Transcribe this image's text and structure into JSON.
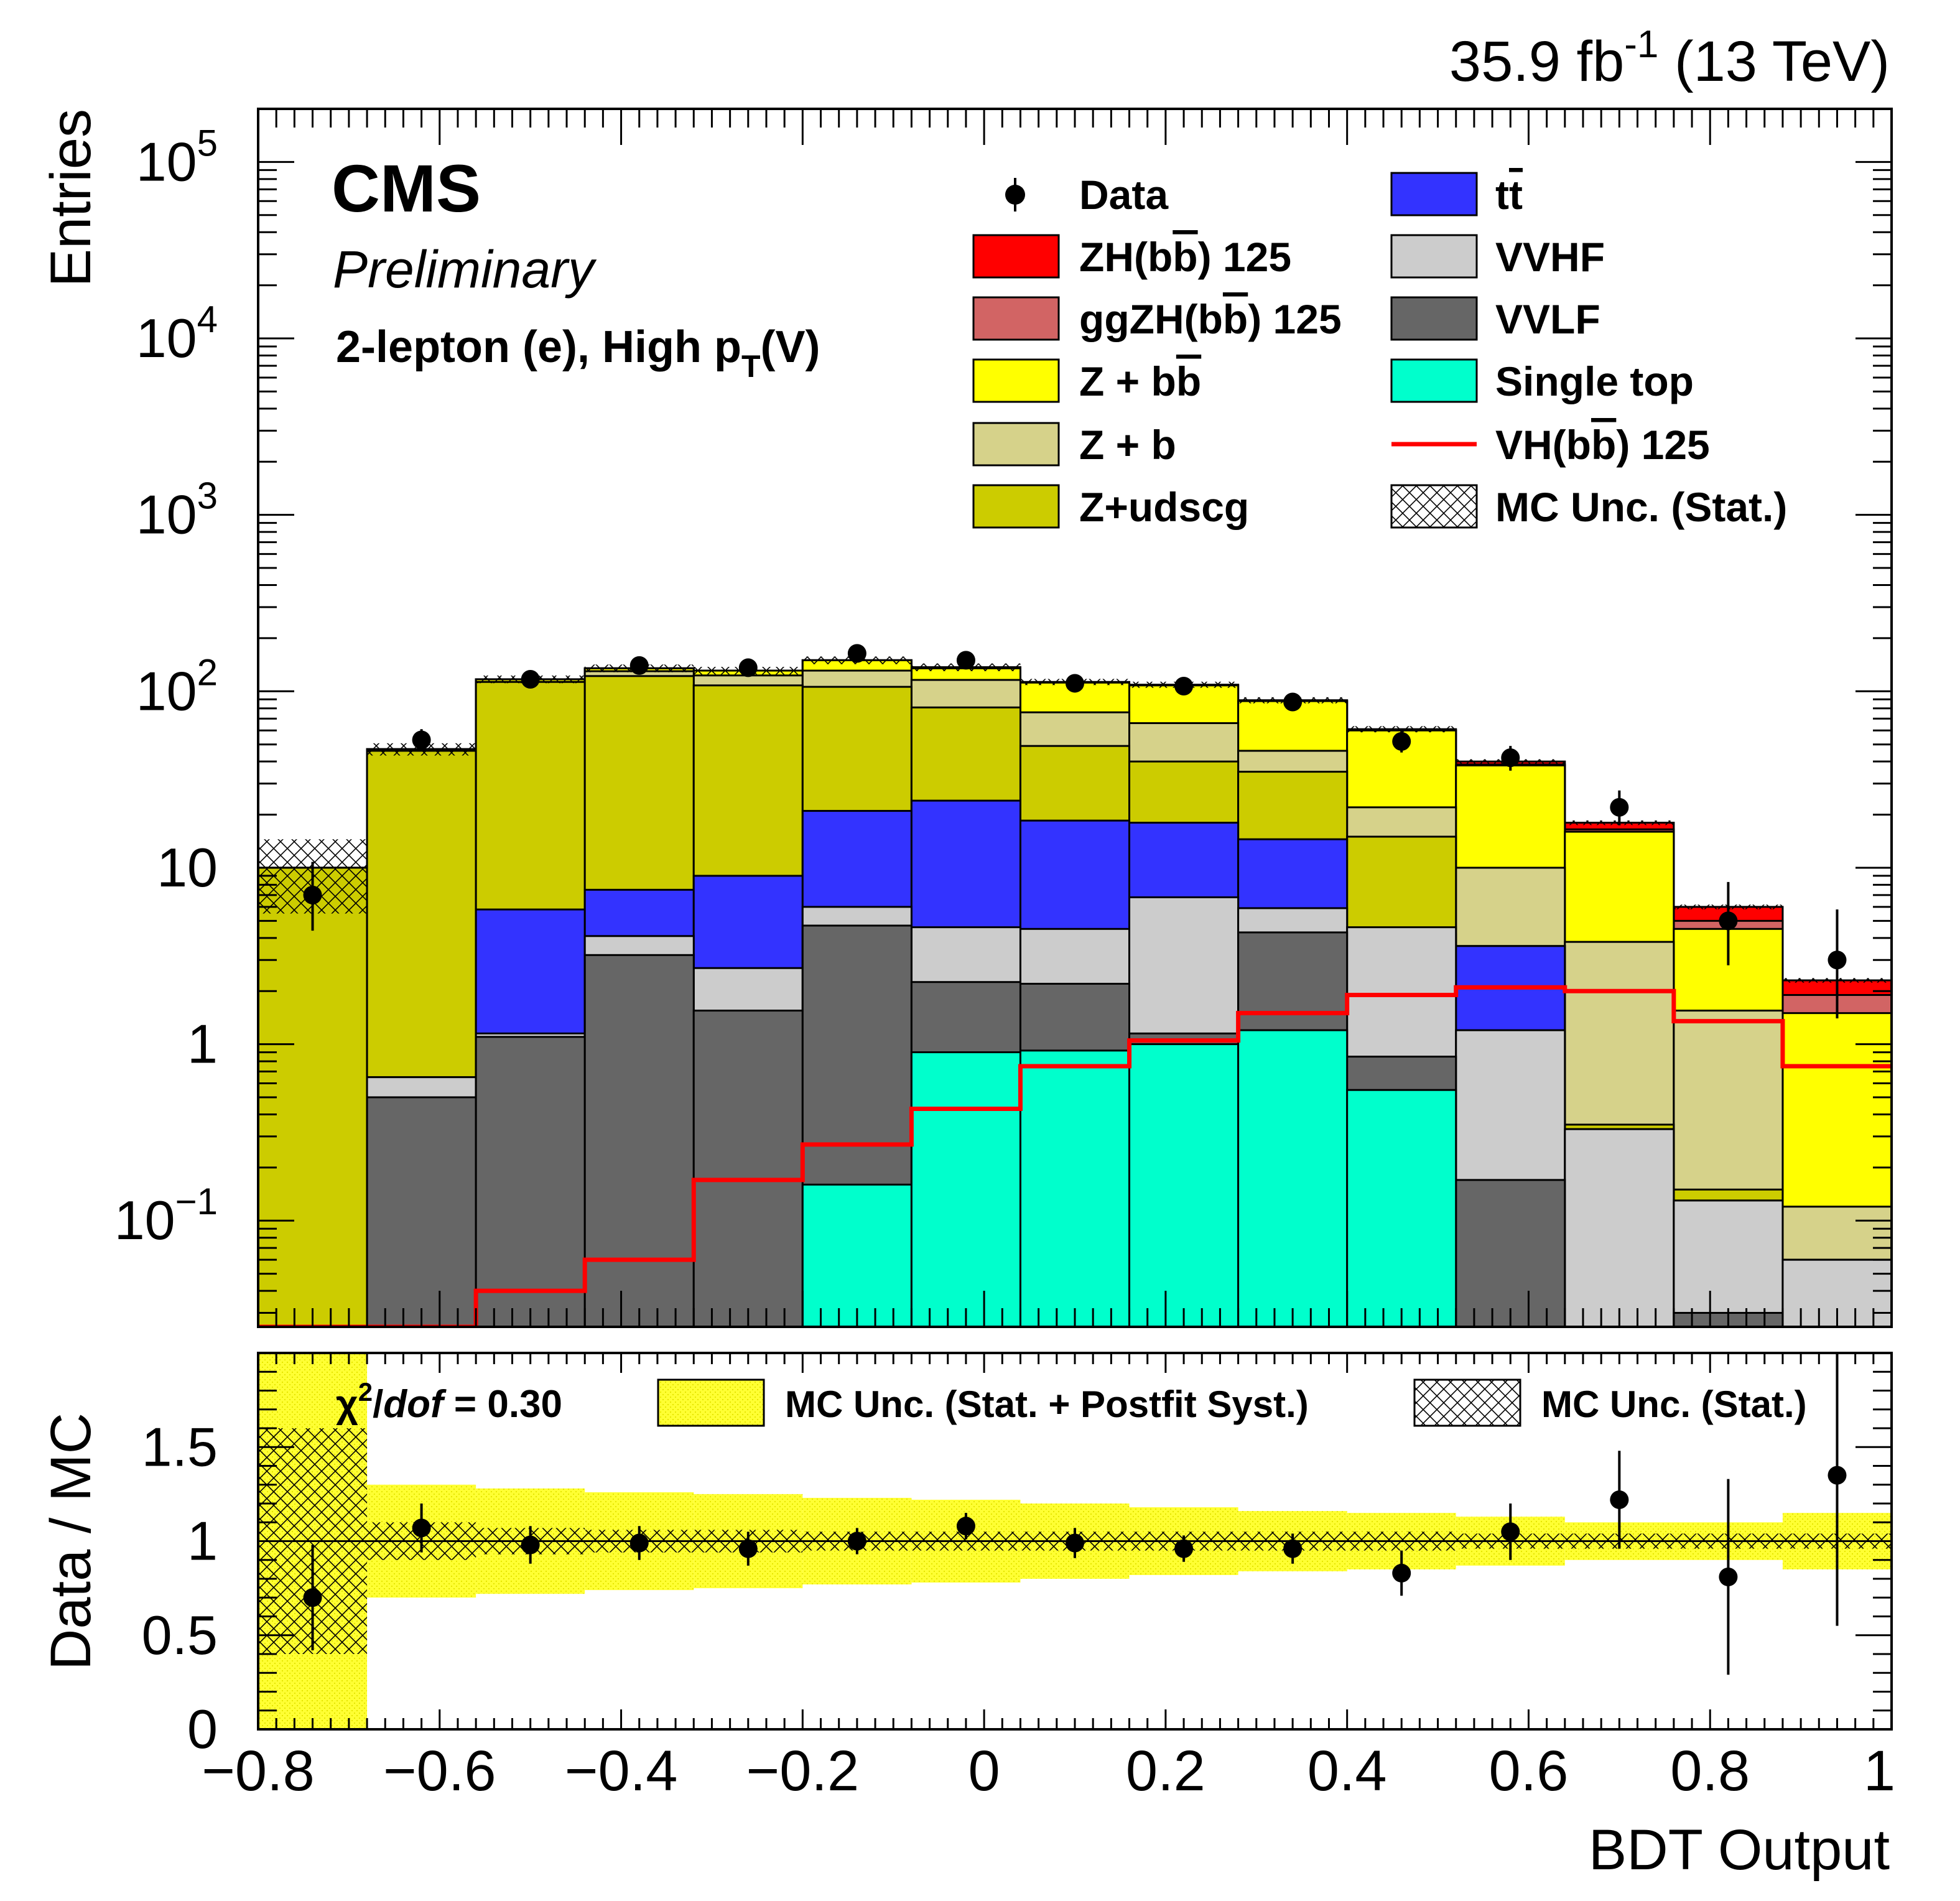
{
  "header": {
    "lumi": "35.9 fb",
    "lumi_sup": "-1",
    "energy": " (13 TeV)"
  },
  "labels": {
    "cms": "CMS",
    "preliminary": "Preliminary",
    "channel_pre": "2-lepton (e), High p",
    "channel_sub": "T",
    "channel_post": "(V)"
  },
  "chart_data": [
    {
      "type": "area",
      "stacked_histogram": true,
      "ylabel": "Entries",
      "yscale": "log",
      "ylim": [
        0.025,
        200000
      ],
      "xlim": [
        -0.8,
        1.0
      ],
      "bin_edges": [
        -0.8,
        -0.68,
        -0.56,
        -0.44,
        -0.32,
        -0.2,
        -0.08,
        0.04,
        0.16,
        0.28,
        0.4,
        0.52,
        0.64,
        0.76,
        0.88,
        1.0
      ],
      "y_ticks": [
        {
          "v": 100000,
          "b": "10",
          "e": "5"
        },
        {
          "v": 10000,
          "b": "10",
          "e": "4"
        },
        {
          "v": 1000,
          "b": "10",
          "e": "3"
        },
        {
          "v": 100,
          "b": "10",
          "e": "2"
        },
        {
          "v": 10,
          "b": "10",
          "e": ""
        },
        {
          "v": 1,
          "b": "1",
          "e": ""
        },
        {
          "v": 0.1,
          "b": "10",
          "e": "−1"
        }
      ],
      "stack_order_bottom_to_top": [
        "single_top",
        "vvlf",
        "vvhf",
        "ttbar",
        "z_udscg",
        "z_b",
        "z_bb",
        "ggzh",
        "zh"
      ],
      "cumulative_stack_tops": {
        "single_top": [
          0,
          0,
          0,
          0,
          0,
          0.16,
          0.9,
          0.92,
          1.0,
          1.2,
          0.55,
          0,
          0,
          0,
          0
        ],
        "vvlf": [
          0,
          0.5,
          1.1,
          3.2,
          1.55,
          4.7,
          2.25,
          2.2,
          1.15,
          4.3,
          0.85,
          0.17,
          0,
          0.03,
          0
        ],
        "vvhf": [
          0,
          0.65,
          1.15,
          4.1,
          2.7,
          6.0,
          4.6,
          4.5,
          6.8,
          5.9,
          4.6,
          1.2,
          0.33,
          0.13,
          0.06
        ],
        "ttbar": [
          0,
          0.65,
          5.8,
          7.5,
          9.0,
          21.0,
          24.0,
          18.5,
          18.0,
          14.5,
          4.2,
          3.6,
          0.33,
          0.13,
          0.06
        ],
        "z_udscg": [
          10.0,
          46.0,
          113.0,
          122.0,
          108.0,
          106.0,
          81.0,
          49.0,
          40.0,
          35.0,
          15.0,
          3.6,
          0.35,
          0.15,
          0.06
        ],
        "z_b": [
          10.0,
          46.0,
          113.0,
          130.0,
          123.0,
          131.0,
          116.0,
          76.0,
          66.0,
          46.0,
          22.0,
          10.0,
          3.8,
          1.55,
          0.12
        ],
        "z_bb": [
          10.0,
          47.0,
          117.0,
          135.0,
          131.0,
          150.0,
          135.0,
          112.0,
          108.0,
          88.0,
          60.0,
          38.0,
          16.0,
          4.5,
          1.5
        ],
        "ggzh": [
          10.0,
          47.0,
          117.0,
          135.0,
          131.0,
          150.0,
          136.0,
          112.0,
          108.0,
          88.0,
          60.0,
          38.5,
          16.5,
          5.0,
          1.9
        ],
        "zh": [
          10.0,
          47.0,
          117.0,
          135.0,
          131.0,
          150.0,
          137.0,
          113.0,
          109.0,
          89.0,
          61.0,
          40.0,
          18.0,
          6.0,
          2.3
        ]
      },
      "vh_line": [
        0.025,
        0.025,
        0.04,
        0.06,
        0.17,
        0.27,
        0.43,
        0.75,
        1.05,
        1.5,
        1.9,
        2.1,
        2.0,
        1.35,
        0.75
      ],
      "data_points": {
        "x": [
          -0.74,
          -0.62,
          -0.5,
          -0.38,
          -0.26,
          -0.14,
          -0.02,
          0.1,
          0.22,
          0.34,
          0.46,
          0.58,
          0.7,
          0.82,
          0.94
        ],
        "y": [
          7.0,
          53.0,
          117.0,
          140.0,
          136.0,
          164.0,
          150.0,
          111.0,
          107.0,
          87.0,
          52.0,
          42.0,
          22.0,
          5.0,
          3.0
        ],
        "err_lo": [
          2.6,
          7.0,
          11.0,
          12.0,
          12.0,
          13.0,
          12.0,
          11.0,
          10.0,
          9.5,
          7.0,
          6.5,
          4.6,
          2.2,
          1.6
        ],
        "err_hi": [
          3.8,
          8.0,
          11.5,
          12.5,
          12.5,
          13.5,
          12.5,
          11.0,
          10.5,
          9.5,
          7.5,
          7.0,
          5.4,
          3.3,
          2.8
        ]
      },
      "mc_stat_unc_rel": [
        0.45,
        0.08,
        0.05,
        0.05,
        0.05,
        0.05,
        0.05,
        0.04,
        0.04,
        0.04,
        0.04,
        0.03,
        0.03,
        0.03,
        0.03
      ],
      "legend_placement": "top-right",
      "legend": {
        "data": "Data",
        "zh": "ZH(b",
        "ggzh": "ggZH(b",
        "z_bb": "Z + b",
        "z_b": "Z + b",
        "z_udscg": "Z+udscg",
        "ttbar": "t",
        "vvhf": "VVHF",
        "vvlf": "VVLF",
        "single_top": "Single top",
        "vh": "VH(b",
        "mc_unc": "MC Unc. (Stat.)",
        "bbar_suffix": ") 125",
        "b_letter": "b",
        "t_letter": "t"
      },
      "colors": {
        "zh": "#ff0000",
        "ggzh": "#d26464",
        "z_bb": "#ffff00",
        "z_b": "#d6d28a",
        "z_udscg": "#cccc00",
        "ttbar": "#3333ff",
        "vvhf": "#cccccc",
        "vvlf": "#666666",
        "single_top": "#00ffcc",
        "vh_line": "#ff0000"
      }
    },
    {
      "type": "scatter",
      "ylabel": "Data / MC",
      "xlabel": "BDT Output",
      "ylim": [
        0,
        2
      ],
      "xlim": [
        -0.8,
        1.0
      ],
      "x_ticks": [
        {
          "v": -0.8,
          "t": "−0.8"
        },
        {
          "v": -0.6,
          "t": "−0.6"
        },
        {
          "v": -0.4,
          "t": "−0.4"
        },
        {
          "v": -0.2,
          "t": "−0.2"
        },
        {
          "v": 0,
          "t": "0"
        },
        {
          "v": 0.2,
          "t": "0.2"
        },
        {
          "v": 0.4,
          "t": "0.4"
        },
        {
          "v": 0.6,
          "t": "0.6"
        },
        {
          "v": 0.8,
          "t": "0.8"
        },
        {
          "v": 1.0,
          "t": "1"
        }
      ],
      "y_ticks": [
        {
          "v": 0,
          "t": "0"
        },
        {
          "v": 0.5,
          "t": "0.5"
        },
        {
          "v": 1,
          "t": "1"
        },
        {
          "v": 1.5,
          "t": "1.5"
        }
      ],
      "ratio": {
        "x": [
          -0.74,
          -0.62,
          -0.5,
          -0.38,
          -0.26,
          -0.14,
          -0.02,
          0.1,
          0.22,
          0.34,
          0.46,
          0.58,
          0.7,
          0.82,
          0.94
        ],
        "y": [
          0.7,
          1.07,
          0.98,
          0.99,
          0.96,
          1.0,
          1.08,
          0.99,
          0.96,
          0.96,
          0.83,
          1.05,
          1.22,
          0.81,
          1.35
        ],
        "err": [
          0.28,
          0.13,
          0.1,
          0.09,
          0.09,
          0.07,
          0.07,
          0.08,
          0.07,
          0.08,
          0.12,
          0.15,
          0.26,
          0.52,
          0.8
        ]
      },
      "band_postfit_half_width": [
        1.0,
        0.3,
        0.28,
        0.26,
        0.25,
        0.23,
        0.22,
        0.2,
        0.18,
        0.16,
        0.15,
        0.13,
        0.1,
        0.1,
        0.15
      ],
      "band_stat_half_width": [
        0.6,
        0.1,
        0.07,
        0.06,
        0.06,
        0.05,
        0.05,
        0.05,
        0.05,
        0.05,
        0.05,
        0.04,
        0.04,
        0.04,
        0.04
      ],
      "chi2_label": "χ",
      "chi2_sup": "2",
      "chi2_slash": "/",
      "chi2_dof": "dof",
      "chi2_value": " = 0.30",
      "legend": {
        "postfit": "MC Unc. (Stat. + Postfit Syst.)",
        "stat": "MC Unc. (Stat.)"
      }
    }
  ]
}
